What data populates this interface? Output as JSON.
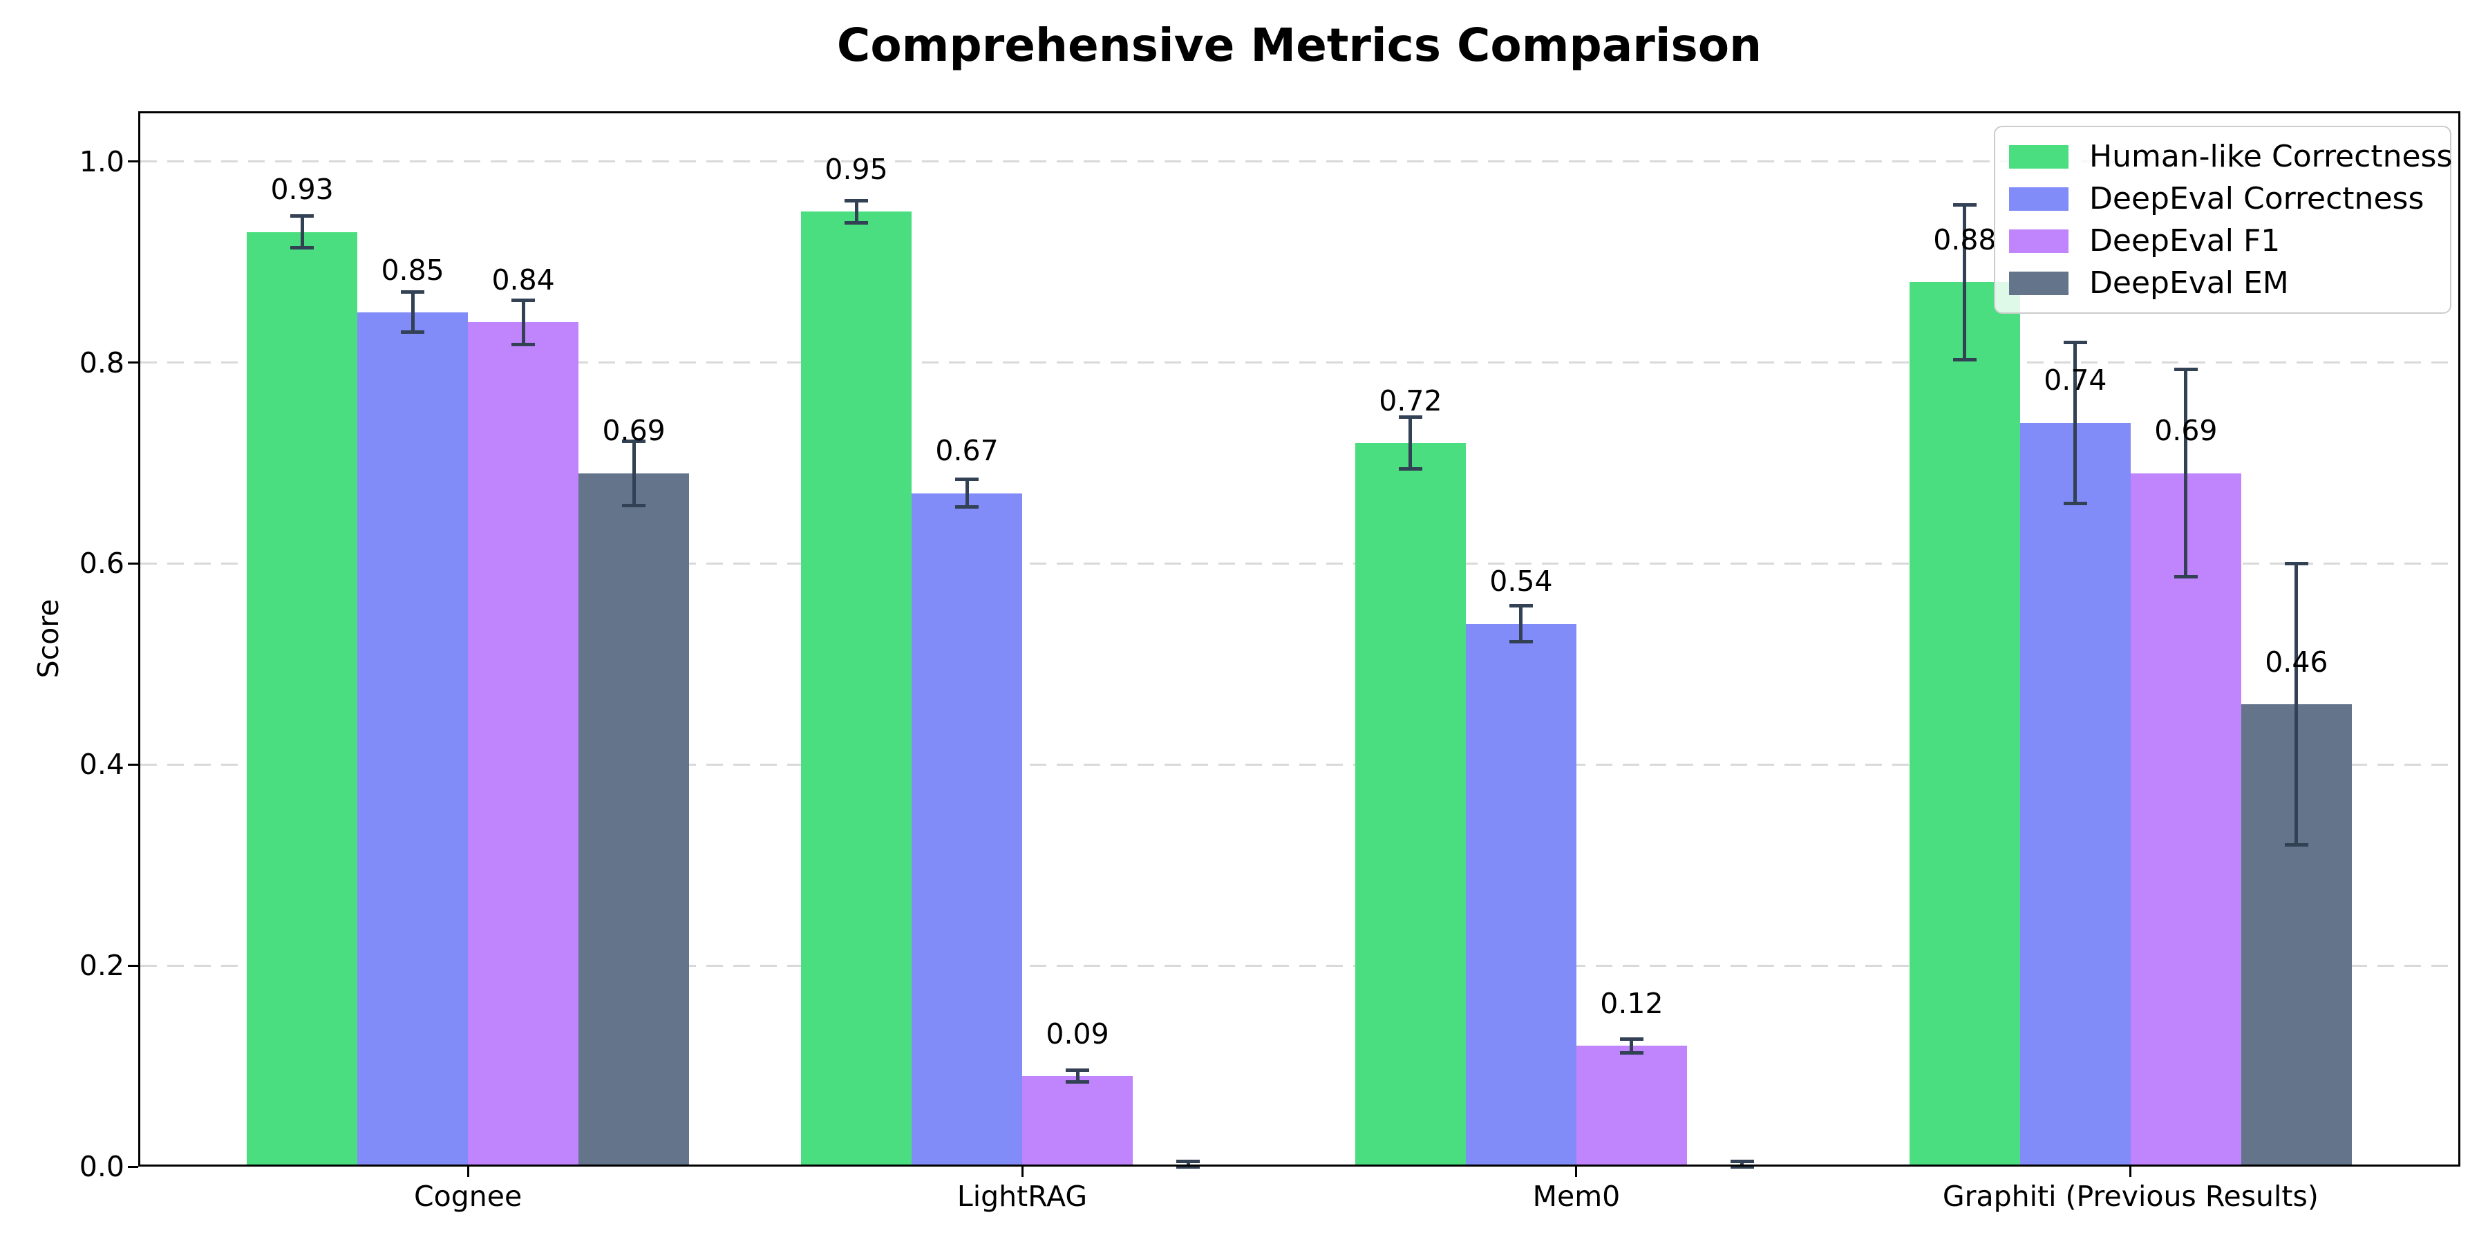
{
  "title": "Comprehensive Metrics Comparison",
  "ylabel": "Score",
  "chart_data": {
    "type": "bar",
    "title": "Comprehensive Metrics Comparison",
    "xlabel": "",
    "ylabel": "Score",
    "categories": [
      "Cognee",
      "LightRAG",
      "Mem0",
      "Graphiti (Previous Results)"
    ],
    "series": [
      {
        "name": "Human-like Correctness",
        "color": "#4ade80",
        "values": [
          0.93,
          0.95,
          0.72,
          0.88
        ],
        "errors": [
          0.016,
          0.011,
          0.026,
          0.077
        ],
        "labels": [
          "0.93",
          "0.95",
          "0.72",
          "0.88"
        ]
      },
      {
        "name": "DeepEval Correctness",
        "color": "#818cf8",
        "values": [
          0.85,
          0.67,
          0.54,
          0.74
        ],
        "errors": [
          0.02,
          0.014,
          0.018,
          0.08
        ],
        "labels": [
          "0.85",
          "0.67",
          "0.54",
          "0.74"
        ]
      },
      {
        "name": "DeepEval F1",
        "color": "#c084fc",
        "values": [
          0.84,
          0.09,
          0.12,
          0.69
        ],
        "errors": [
          0.022,
          0.006,
          0.007,
          0.103
        ],
        "labels": [
          "0.84",
          "0.09",
          "0.12",
          "0.69"
        ]
      },
      {
        "name": "DeepEval EM",
        "color": "#64748b",
        "values": [
          0.69,
          0.0,
          0.0,
          0.46
        ],
        "errors": [
          0.032,
          0.005,
          0.005,
          0.14
        ],
        "labels": [
          "0.69",
          null,
          null,
          "0.46"
        ]
      }
    ],
    "ylim": [
      0,
      1.05
    ],
    "yticks": [
      "0.0",
      "0.2",
      "0.4",
      "0.6",
      "0.8",
      "1.0"
    ],
    "grid": "horizontal-dashed",
    "legend_position": "upper-right",
    "colors": {
      "error_bar": "#334155",
      "gridline": "#d9d9d9",
      "axis": "#000000",
      "background": "#ffffff",
      "text": "#000000"
    }
  }
}
